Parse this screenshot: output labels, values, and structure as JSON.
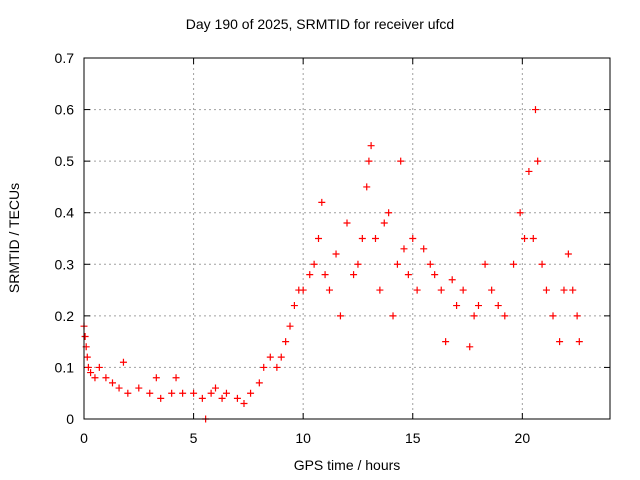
{
  "chart_data": {
    "type": "scatter",
    "title": "Day 190 of 2025, SRMTID for receiver ufcd",
    "xlabel": "GPS time / hours",
    "ylabel": "SRMTID / TECUs",
    "xlim": [
      0,
      24
    ],
    "ylim": [
      0,
      0.7
    ],
    "xticks": [
      0,
      5,
      10,
      15,
      20
    ],
    "yticks": [
      0,
      0.1,
      0.2,
      0.3,
      0.4,
      0.5,
      0.6,
      0.7
    ],
    "grid": true,
    "marker": "+",
    "color": "#ff0000",
    "series": [
      {
        "name": "SRMTID",
        "points": [
          [
            0.0,
            0.18
          ],
          [
            0.05,
            0.16
          ],
          [
            0.1,
            0.14
          ],
          [
            0.15,
            0.12
          ],
          [
            0.2,
            0.1
          ],
          [
            0.3,
            0.09
          ],
          [
            0.5,
            0.08
          ],
          [
            0.7,
            0.1
          ],
          [
            1.0,
            0.08
          ],
          [
            1.3,
            0.07
          ],
          [
            1.6,
            0.06
          ],
          [
            1.8,
            0.11
          ],
          [
            2.0,
            0.05
          ],
          [
            2.5,
            0.06
          ],
          [
            3.0,
            0.05
          ],
          [
            3.3,
            0.08
          ],
          [
            3.5,
            0.04
          ],
          [
            4.0,
            0.05
          ],
          [
            4.2,
            0.08
          ],
          [
            4.5,
            0.05
          ],
          [
            5.0,
            0.05
          ],
          [
            5.4,
            0.04
          ],
          [
            5.55,
            0.0
          ],
          [
            5.8,
            0.05
          ],
          [
            6.0,
            0.06
          ],
          [
            6.3,
            0.04
          ],
          [
            6.5,
            0.05
          ],
          [
            7.0,
            0.04
          ],
          [
            7.3,
            0.03
          ],
          [
            7.6,
            0.05
          ],
          [
            8.0,
            0.07
          ],
          [
            8.2,
            0.1
          ],
          [
            8.5,
            0.12
          ],
          [
            8.8,
            0.1
          ],
          [
            9.0,
            0.12
          ],
          [
            9.2,
            0.15
          ],
          [
            9.4,
            0.18
          ],
          [
            9.6,
            0.22
          ],
          [
            9.8,
            0.25
          ],
          [
            10.0,
            0.25
          ],
          [
            10.3,
            0.28
          ],
          [
            10.5,
            0.3
          ],
          [
            10.7,
            0.35
          ],
          [
            10.85,
            0.42
          ],
          [
            11.0,
            0.28
          ],
          [
            11.2,
            0.25
          ],
          [
            11.5,
            0.32
          ],
          [
            11.7,
            0.2
          ],
          [
            12.0,
            0.38
          ],
          [
            12.3,
            0.28
          ],
          [
            12.5,
            0.3
          ],
          [
            12.7,
            0.35
          ],
          [
            12.9,
            0.45
          ],
          [
            13.0,
            0.5
          ],
          [
            13.1,
            0.53
          ],
          [
            13.3,
            0.35
          ],
          [
            13.5,
            0.25
          ],
          [
            13.7,
            0.38
          ],
          [
            13.9,
            0.4
          ],
          [
            14.1,
            0.2
          ],
          [
            14.3,
            0.3
          ],
          [
            14.45,
            0.5
          ],
          [
            14.6,
            0.33
          ],
          [
            14.8,
            0.28
          ],
          [
            15.0,
            0.35
          ],
          [
            15.2,
            0.25
          ],
          [
            15.5,
            0.33
          ],
          [
            15.8,
            0.3
          ],
          [
            16.0,
            0.28
          ],
          [
            16.3,
            0.25
          ],
          [
            16.5,
            0.15
          ],
          [
            16.8,
            0.27
          ],
          [
            17.0,
            0.22
          ],
          [
            17.3,
            0.25
          ],
          [
            17.6,
            0.14
          ],
          [
            17.8,
            0.2
          ],
          [
            18.0,
            0.22
          ],
          [
            18.3,
            0.3
          ],
          [
            18.6,
            0.25
          ],
          [
            18.9,
            0.22
          ],
          [
            19.2,
            0.2
          ],
          [
            19.6,
            0.3
          ],
          [
            19.9,
            0.4
          ],
          [
            20.1,
            0.35
          ],
          [
            20.3,
            0.48
          ],
          [
            20.5,
            0.35
          ],
          [
            20.6,
            0.6
          ],
          [
            20.7,
            0.5
          ],
          [
            20.9,
            0.3
          ],
          [
            21.1,
            0.25
          ],
          [
            21.4,
            0.2
          ],
          [
            21.7,
            0.15
          ],
          [
            21.9,
            0.25
          ],
          [
            22.1,
            0.32
          ],
          [
            22.3,
            0.25
          ],
          [
            22.5,
            0.2
          ],
          [
            22.6,
            0.15
          ]
        ]
      }
    ]
  }
}
